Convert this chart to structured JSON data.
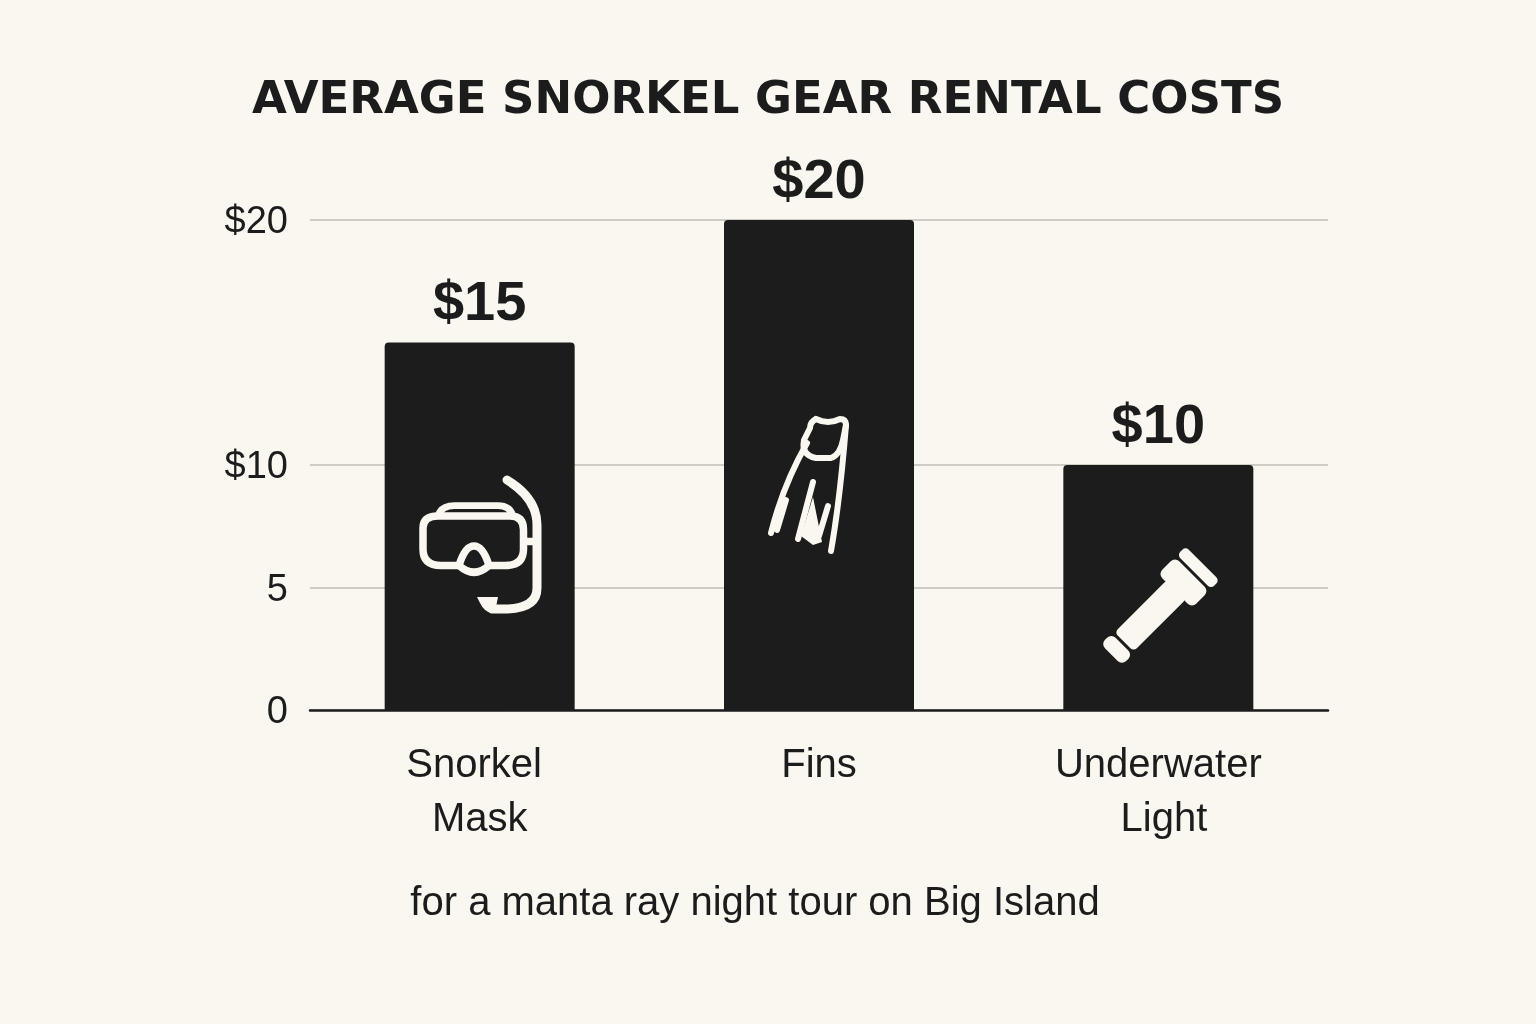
{
  "chart_data": {
    "type": "bar",
    "title": "AVERAGE SNORKEL GEAR RENTAL COSTS",
    "categories": [
      "Snorkel Mask",
      "Fins",
      "Underwater Light"
    ],
    "values": [
      15,
      20,
      10
    ],
    "value_labels": [
      "$15",
      "$20",
      "$10"
    ],
    "color": "#1c1c1c",
    "ylim": [
      0,
      20
    ],
    "yticks": [
      0,
      5,
      {
        "value": 10,
        "label": "$10"
      },
      {
        "value": 20,
        "label": "$20"
      }
    ],
    "grid": "y",
    "annotations": [
      "for a manta ray night tour on Big Island"
    ]
  }
}
